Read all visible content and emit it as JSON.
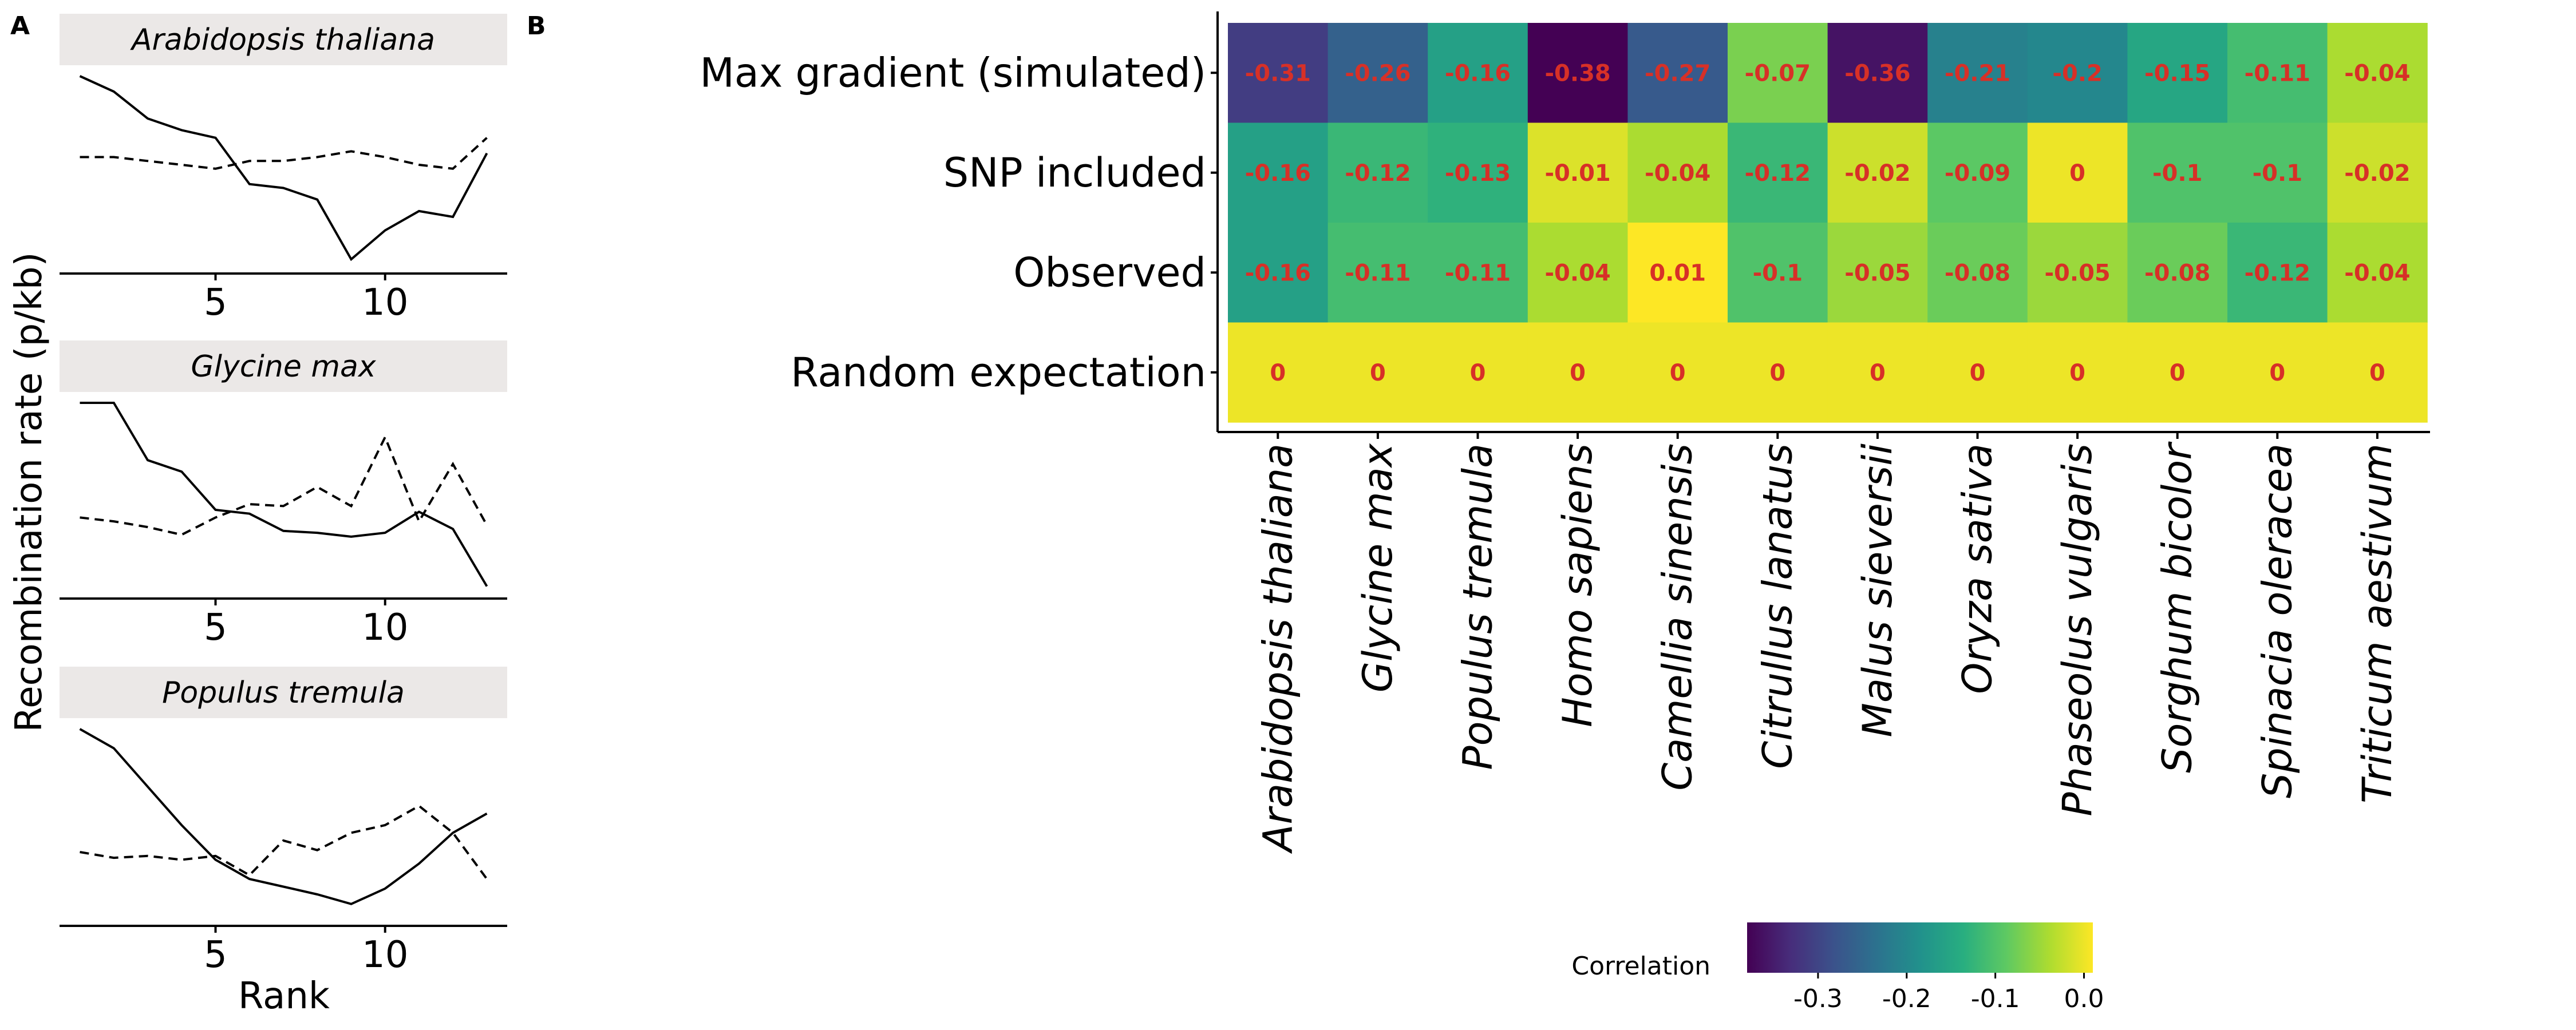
{
  "panel_labels": {
    "a": "A",
    "b": "B"
  },
  "panel_a": {
    "ylabel": "Recombination rate (p/kb)",
    "xlabel": "Rank",
    "x_ticks": [
      "5",
      "10"
    ]
  },
  "panel_b": {
    "legend_title": "Correlation",
    "legend_ticks": [
      "-0.3",
      "-0.2",
      "-0.1",
      "0.0"
    ]
  },
  "chart_data": [
    {
      "type": "line",
      "title": "Arabidopsis thaliana",
      "x": [
        1,
        2,
        3,
        4,
        5,
        6,
        7,
        8,
        9,
        10,
        11,
        12,
        13
      ],
      "xlim": [
        0.4,
        13.6
      ],
      "ylim": [
        0,
        1
      ],
      "series": [
        {
          "style": "solid",
          "values": [
            1.0,
            0.92,
            0.78,
            0.72,
            0.68,
            0.44,
            0.42,
            0.36,
            0.05,
            0.2,
            0.3,
            0.27,
            0.6
          ]
        },
        {
          "style": "dashed",
          "values": [
            0.58,
            0.58,
            0.56,
            0.54,
            0.52,
            0.56,
            0.56,
            0.58,
            0.61,
            0.58,
            0.54,
            0.52,
            0.68
          ]
        }
      ]
    },
    {
      "type": "line",
      "title": "Glycine max",
      "x": [
        1,
        2,
        3,
        4,
        5,
        6,
        7,
        8,
        9,
        10,
        11,
        12,
        13
      ],
      "xlim": [
        0.4,
        13.6
      ],
      "ylim": [
        0,
        1
      ],
      "series": [
        {
          "style": "solid",
          "values": [
            1.0,
            1.0,
            0.7,
            0.64,
            0.44,
            0.42,
            0.33,
            0.32,
            0.3,
            0.32,
            0.43,
            0.34,
            0.04
          ]
        },
        {
          "style": "dashed",
          "values": [
            0.4,
            0.38,
            0.35,
            0.31,
            0.4,
            0.47,
            0.46,
            0.56,
            0.46,
            0.82,
            0.38,
            0.68,
            0.36
          ]
        }
      ]
    },
    {
      "type": "line",
      "title": "Populus tremula",
      "x": [
        1,
        2,
        3,
        4,
        5,
        6,
        7,
        8,
        9,
        10,
        11,
        12,
        13
      ],
      "xlim": [
        0.4,
        13.6
      ],
      "ylim": [
        0,
        1
      ],
      "series": [
        {
          "style": "solid",
          "values": [
            1.0,
            0.9,
            0.7,
            0.5,
            0.32,
            0.22,
            0.18,
            0.14,
            0.09,
            0.17,
            0.3,
            0.46,
            0.56
          ]
        },
        {
          "style": "dashed",
          "values": [
            0.36,
            0.33,
            0.34,
            0.32,
            0.34,
            0.24,
            0.42,
            0.37,
            0.46,
            0.5,
            0.6,
            0.46,
            0.22
          ]
        }
      ]
    },
    {
      "type": "heatmap",
      "rows": [
        "Max gradient (simulated)",
        "SNP included",
        "Observed",
        "Random expectation"
      ],
      "columns": [
        "Arabidopsis thaliana",
        "Glycine max",
        "Populus tremula",
        "Homo sapiens",
        "Camellia sinensis",
        "Citrullus lanatus",
        "Malus sieversii",
        "Oryza sativa",
        "Phaseolus vulgaris",
        "Sorghum bicolor",
        "Spinacia oleracea",
        "Triticum aestivum"
      ],
      "values": [
        [
          -0.31,
          -0.26,
          -0.16,
          -0.38,
          -0.27,
          -0.07,
          -0.36,
          -0.21,
          -0.2,
          -0.15,
          -0.11,
          -0.04
        ],
        [
          -0.16,
          -0.12,
          -0.13,
          -0.01,
          -0.04,
          -0.12,
          -0.02,
          -0.09,
          0,
          -0.1,
          -0.1,
          -0.02
        ],
        [
          -0.16,
          -0.11,
          -0.11,
          -0.04,
          0.01,
          -0.1,
          -0.05,
          -0.08,
          -0.05,
          -0.08,
          -0.12,
          -0.04
        ],
        [
          0,
          0,
          0,
          0,
          0,
          0,
          0,
          0,
          0,
          0,
          0,
          0
        ]
      ],
      "labels": [
        [
          "-0.31",
          "-0.26",
          "-0.16",
          "-0.38",
          "-0.27",
          "-0.07",
          "-0.36",
          "-0.21",
          "-0.2",
          "-0.15",
          "-0.11",
          "-0.04"
        ],
        [
          "-0.16",
          "-0.12",
          "-0.13",
          "-0.01",
          "-0.04",
          "-0.12",
          "-0.02",
          "-0.09",
          "0",
          "-0.1",
          "-0.1",
          "-0.02"
        ],
        [
          "-0.16",
          "-0.11",
          "-0.11",
          "-0.04",
          "0.01",
          "-0.1",
          "-0.05",
          "-0.08",
          "-0.05",
          "-0.08",
          "-0.12",
          "-0.04"
        ],
        [
          "0",
          "0",
          "0",
          "0",
          "0",
          "0",
          "0",
          "0",
          "0",
          "0",
          "0",
          "0"
        ]
      ],
      "color_range": [
        -0.38,
        0.01
      ],
      "colormap": "viridis",
      "label_color": "#d73027"
    }
  ]
}
